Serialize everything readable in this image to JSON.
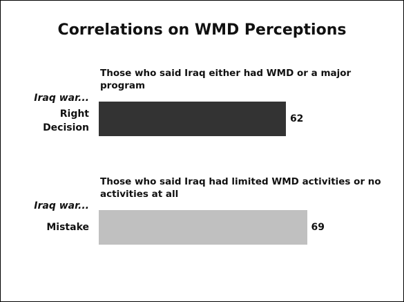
{
  "chart_data": {
    "type": "bar",
    "title": "Correlations on WMD Perceptions",
    "descriptions": [
      "Those who said Iraq either had WMD or a major program",
      "Those who said Iraq had limited WMD activities or no activities at all"
    ],
    "prefixes": [
      "Iraq war...",
      "Iraq war..."
    ],
    "categories": [
      "Right Decision",
      "Mistake"
    ],
    "values": [
      62,
      69
    ],
    "colors": [
      "#333333",
      "#c0c0c0"
    ]
  }
}
